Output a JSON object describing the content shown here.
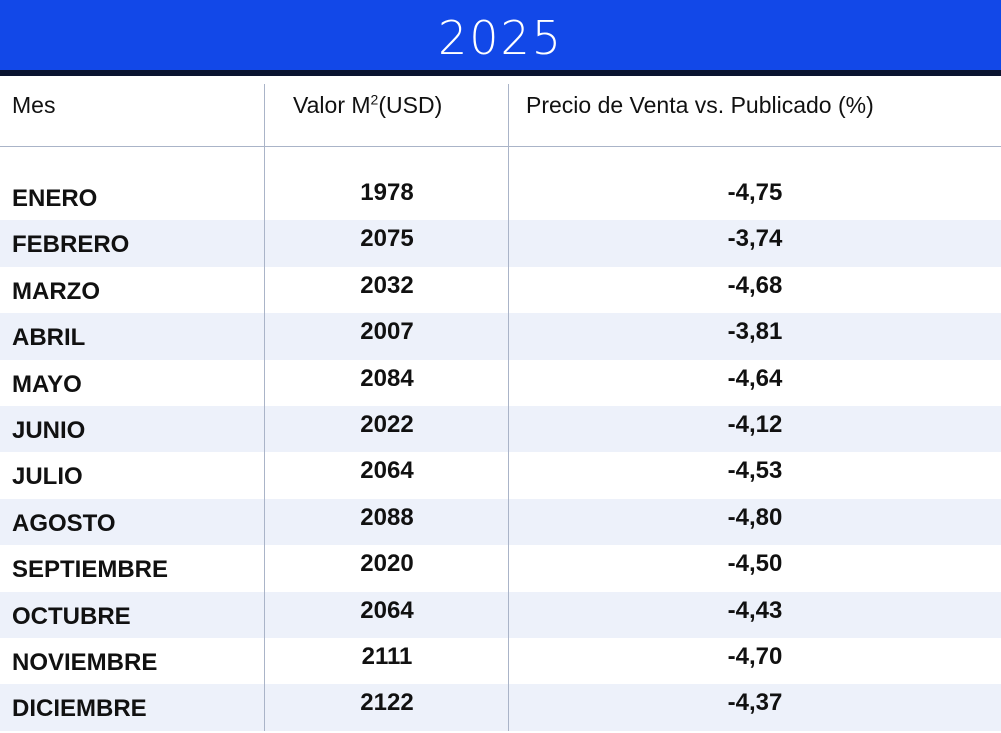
{
  "title": "2025",
  "chart_data": {
    "type": "table",
    "title": "2025",
    "columns": [
      "Mes",
      "Valor M²(USD)",
      "Precio de Venta vs. Publicado (%)"
    ],
    "rows": [
      {
        "month": "ENERO",
        "value": "1978",
        "pct": "-4,75"
      },
      {
        "month": "FEBRERO",
        "value": "2075",
        "pct": "-3,74"
      },
      {
        "month": "MARZO",
        "value": "2032",
        "pct": "-4,68"
      },
      {
        "month": "ABRIL",
        "value": "2007",
        "pct": "-3,81"
      },
      {
        "month": "MAYO",
        "value": "2084",
        "pct": "-4,64"
      },
      {
        "month": "JUNIO",
        "value": "2022",
        "pct": "-4,12"
      },
      {
        "month": "JULIO",
        "value": "2064",
        "pct": "-4,53"
      },
      {
        "month": "AGOSTO",
        "value": "2088",
        "pct": "-4,80"
      },
      {
        "month": "SEPTIEMBRE",
        "value": "2020",
        "pct": "-4,50"
      },
      {
        "month": "OCTUBRE",
        "value": "2064",
        "pct": "-4,43"
      },
      {
        "month": "NOVIEMBRE",
        "value": "2111",
        "pct": "-4,70"
      },
      {
        "month": "DICIEMBRE",
        "value": "2122",
        "pct": "-4,37"
      }
    ]
  },
  "header": {
    "col_month": "Mes",
    "col_value_prefix": "Valor M",
    "col_value_exp": "2",
    "col_value_suffix": "(USD)",
    "col_pct": "Precio de Venta vs. Publicado (%)"
  },
  "colors": {
    "banner": "#1248e8",
    "banner_rule": "#0a1430",
    "row_alt": "#edf1fa",
    "grid_line": "#aab4c8"
  }
}
